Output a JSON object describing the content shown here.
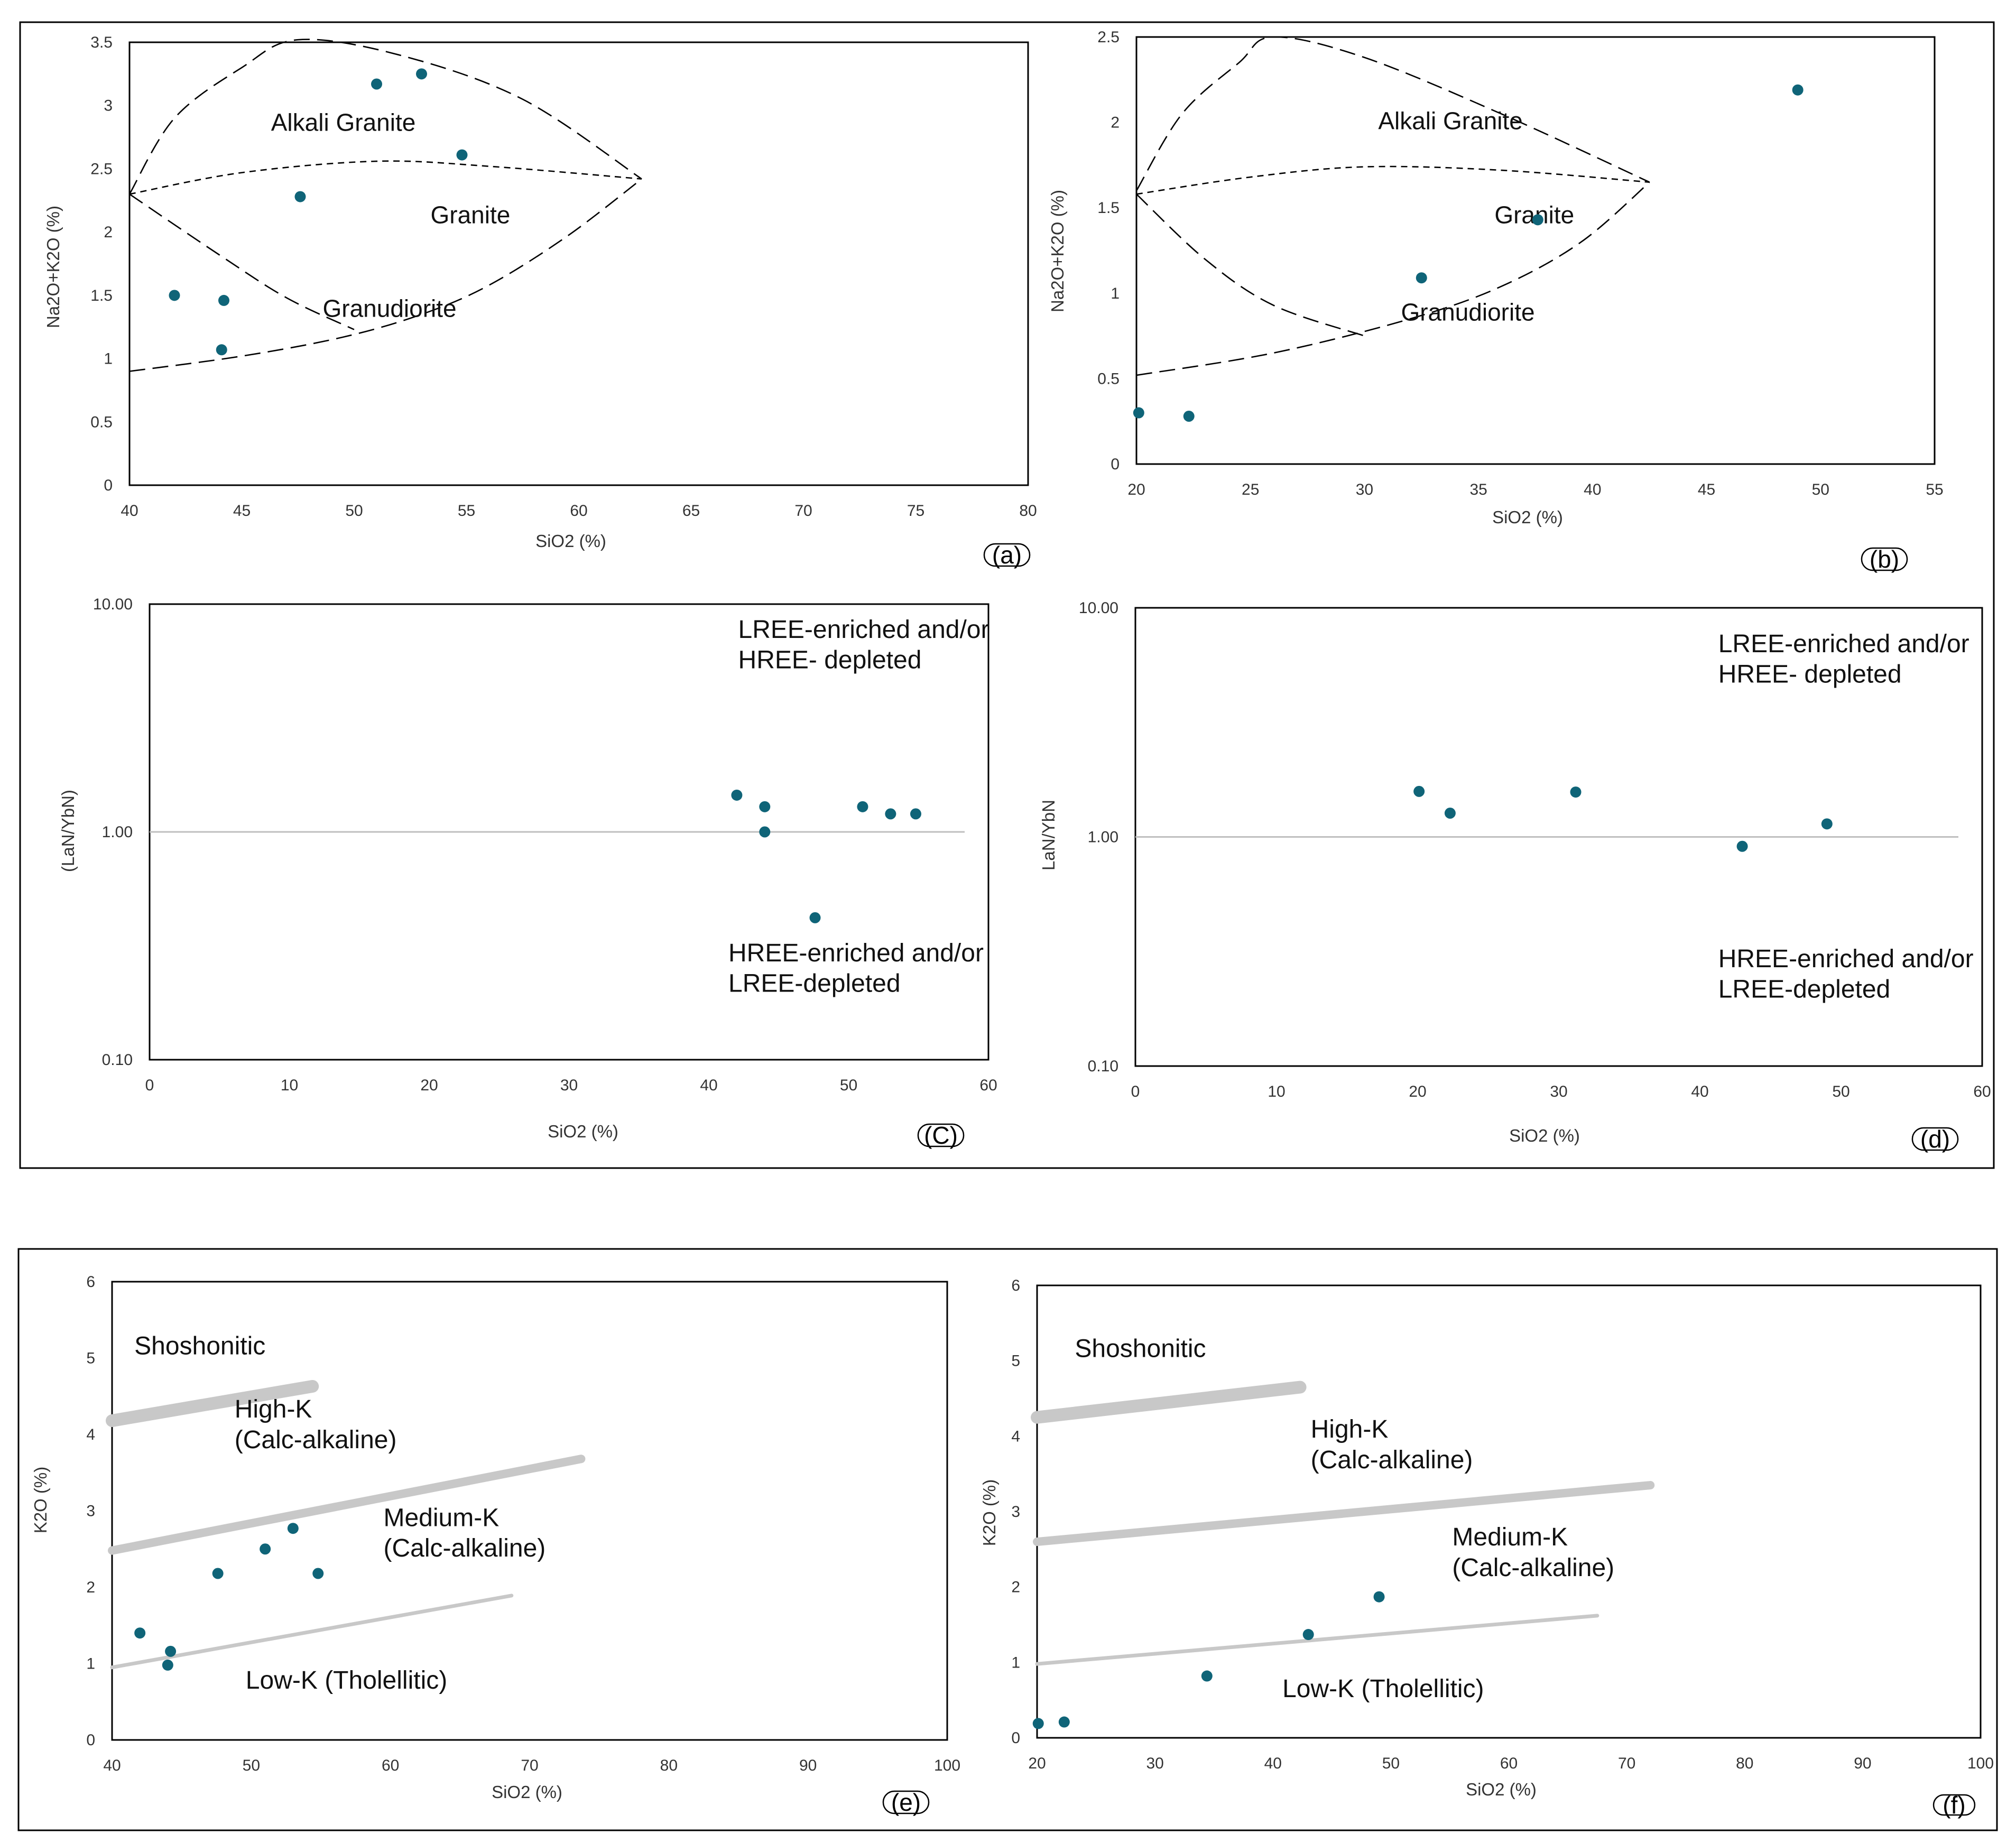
{
  "colors": {
    "marker": "#0f6478",
    "frame": "#000000",
    "dash": "#000000",
    "refline": "#bfbfbf",
    "band": "#c8c8c8"
  },
  "chart_data": [
    {
      "id": "a",
      "type": "scatter",
      "panel_label": "(a)",
      "xlabel": "SiO2 (%)",
      "ylabel": "Na2O+K2O (%)",
      "xlim": [
        40,
        80
      ],
      "ylim": [
        0,
        3.5
      ],
      "xticks": [
        40,
        45,
        50,
        55,
        60,
        65,
        70,
        75,
        80
      ],
      "yticks": [
        0,
        0.5,
        1,
        1.5,
        2,
        2.5,
        3,
        3.5
      ],
      "tick_labels_x": [
        "40",
        "45",
        "50",
        "55",
        "60",
        "65",
        "70",
        "75",
        "80"
      ],
      "tick_labels_y": [
        "0",
        "0.5",
        "1",
        "1.5",
        "2",
        "2.5",
        "3",
        "3.5"
      ],
      "points": [
        [
          42,
          1.5
        ],
        [
          44.1,
          1.07
        ],
        [
          44.2,
          1.46
        ],
        [
          47.6,
          2.28
        ],
        [
          51,
          3.17
        ],
        [
          53,
          3.25
        ],
        [
          54.8,
          2.61
        ]
      ],
      "field_labels": [
        {
          "text": "Alkali Granite",
          "x": 46.3,
          "y": 2.8
        },
        {
          "text": "Granite",
          "x": 53.4,
          "y": 2.07
        },
        {
          "text": "Granudiorite",
          "x": 48.6,
          "y": 1.33
        }
      ],
      "boundaries": [
        {
          "style": "long",
          "pts": [
            [
              40,
              2.3
            ],
            [
              42,
              2.9
            ],
            [
              45,
              3.3
            ],
            [
              47.5,
              3.52
            ],
            [
              52,
              3.4
            ],
            [
              57.5,
              3.05
            ],
            [
              62.8,
              2.42
            ]
          ]
        },
        {
          "style": "short",
          "pts": [
            [
              40,
              2.3
            ],
            [
              45,
              2.47
            ],
            [
              51,
              2.56
            ],
            [
              56,
              2.52
            ],
            [
              62.8,
              2.42
            ]
          ]
        },
        {
          "style": "long",
          "pts": [
            [
              40,
              2.3
            ],
            [
              44,
              1.82
            ],
            [
              47,
              1.48
            ],
            [
              50,
              1.23
            ]
          ]
        },
        {
          "style": "long",
          "pts": [
            [
              40,
              0.9
            ],
            [
              45,
              1.02
            ],
            [
              49.5,
              1.17
            ],
            [
              53,
              1.35
            ],
            [
              56,
              1.58
            ],
            [
              59.5,
              1.97
            ],
            [
              62.8,
              2.42
            ]
          ]
        }
      ]
    },
    {
      "id": "b",
      "type": "scatter",
      "panel_label": "(b)",
      "xlabel": "SiO2 (%)",
      "ylabel": "Na2O+K2O (%)",
      "xlim": [
        20,
        55
      ],
      "ylim": [
        0,
        2.5
      ],
      "xticks": [
        20,
        25,
        30,
        35,
        40,
        45,
        50,
        55
      ],
      "yticks": [
        0,
        0.5,
        1,
        1.5,
        2,
        2.5
      ],
      "tick_labels_x": [
        "20",
        "25",
        "30",
        "35",
        "40",
        "45",
        "50",
        "55"
      ],
      "tick_labels_y": [
        "0",
        "0.5",
        "1",
        "1.5",
        "2",
        "2.5"
      ],
      "points": [
        [
          20.1,
          0.3
        ],
        [
          22.3,
          0.28
        ],
        [
          32.5,
          1.09
        ],
        [
          37.6,
          1.43
        ],
        [
          49,
          2.19
        ]
      ],
      "field_labels": [
        {
          "text": "Alkali Granite",
          "x": 30.6,
          "y": 1.96
        },
        {
          "text": "Granite",
          "x": 35.7,
          "y": 1.41
        },
        {
          "text": "Granudiorite",
          "x": 31.6,
          "y": 0.84
        }
      ],
      "boundaries": [
        {
          "style": "long",
          "pts": [
            [
              20,
              1.6
            ],
            [
              22,
              2.05
            ],
            [
              24.5,
              2.35
            ],
            [
              26,
              2.5
            ],
            [
              30,
              2.38
            ],
            [
              36,
              2.05
            ],
            [
              42.5,
              1.65
            ]
          ]
        },
        {
          "style": "short",
          "pts": [
            [
              20,
              1.58
            ],
            [
              25,
              1.68
            ],
            [
              30,
              1.74
            ],
            [
              36,
              1.72
            ],
            [
              42.5,
              1.65
            ]
          ]
        },
        {
          "style": "long",
          "pts": [
            [
              20,
              1.58
            ],
            [
              23,
              1.2
            ],
            [
              26,
              0.93
            ],
            [
              30,
              0.75
            ]
          ]
        },
        {
          "style": "long",
          "pts": [
            [
              20,
              0.52
            ],
            [
              26,
              0.65
            ],
            [
              32,
              0.85
            ],
            [
              36,
              1.04
            ],
            [
              39.5,
              1.3
            ],
            [
              42.5,
              1.65
            ]
          ]
        }
      ]
    },
    {
      "id": "c",
      "type": "scatter",
      "panel_label": "(C)",
      "xlabel": "SiO2 (%)",
      "ylabel": "(LaN/YbN)",
      "yscale": "log",
      "xlim": [
        0,
        60
      ],
      "ylim": [
        0.1,
        10
      ],
      "xticks": [
        0,
        10,
        20,
        30,
        40,
        50,
        60
      ],
      "yticks": [
        0.1,
        1,
        10
      ],
      "tick_labels_x": [
        "0",
        "10",
        "20",
        "30",
        "40",
        "50",
        "60"
      ],
      "tick_labels_y": [
        "0.10",
        "1.00",
        "10.00"
      ],
      "reference_line": 1.0,
      "points": [
        [
          42,
          1.45
        ],
        [
          44,
          1.29
        ],
        [
          44,
          1.0
        ],
        [
          47.6,
          0.42
        ],
        [
          51,
          1.29
        ],
        [
          53,
          1.2
        ],
        [
          54.8,
          1.2
        ]
      ],
      "annotations": [
        {
          "text": [
            "LREE-enriched and/or",
            "HREE- depleted"
          ],
          "x": 42.1,
          "y": 7.1
        },
        {
          "text": [
            "HREE-enriched and/or",
            "LREE-depleted"
          ],
          "x": 41.4,
          "y": 0.27
        }
      ]
    },
    {
      "id": "d",
      "type": "scatter",
      "panel_label": "(d)",
      "xlabel": "SiO2 (%)",
      "ylabel": "LaN/YbN",
      "yscale": "log",
      "xlim": [
        0,
        60
      ],
      "ylim": [
        0.1,
        10
      ],
      "xticks": [
        0,
        10,
        20,
        30,
        40,
        50,
        60
      ],
      "yticks": [
        0.1,
        1,
        10
      ],
      "tick_labels_x": [
        "0",
        "10",
        "20",
        "30",
        "40",
        "50",
        "60"
      ],
      "tick_labels_y": [
        "0.10",
        "1.00",
        "10.00"
      ],
      "reference_line": 1.0,
      "points": [
        [
          20.1,
          1.58
        ],
        [
          22.3,
          1.27
        ],
        [
          31.2,
          1.57
        ],
        [
          43,
          0.91
        ],
        [
          49,
          1.14
        ]
      ],
      "annotations": [
        {
          "text": [
            "LREE-enriched and/or",
            "HREE- depleted"
          ],
          "x": 41.3,
          "y": 6.4
        },
        {
          "text": [
            "HREE-enriched and/or",
            "LREE-depleted"
          ],
          "x": 41.3,
          "y": 0.27
        }
      ]
    },
    {
      "id": "e",
      "type": "scatter",
      "panel_label": "(e)",
      "xlabel": "SiO2 (%)",
      "ylabel": "K2O (%)",
      "xlim": [
        40,
        100
      ],
      "ylim": [
        0,
        6
      ],
      "xticks": [
        40,
        50,
        60,
        70,
        80,
        90,
        100
      ],
      "yticks": [
        0,
        1,
        2,
        3,
        4,
        5,
        6
      ],
      "tick_labels_x": [
        "40",
        "50",
        "60",
        "70",
        "80",
        "90",
        "100"
      ],
      "tick_labels_y": [
        "0",
        "1",
        "2",
        "3",
        "4",
        "5",
        "6"
      ],
      "points": [
        [
          42,
          1.4
        ],
        [
          44,
          0.98
        ],
        [
          44.2,
          1.16
        ],
        [
          47.6,
          2.18
        ],
        [
          51,
          2.5
        ],
        [
          53,
          2.77
        ],
        [
          54.8,
          2.18
        ]
      ],
      "field_labels": [
        {
          "text": [
            "Shoshonitic"
          ],
          "x": 41.6,
          "y": 5.05
        },
        {
          "text": [
            "High-K",
            "(Calc-alkaline)"
          ],
          "x": 48.8,
          "y": 4.22
        },
        {
          "text": [
            "Medium-K",
            "(Calc-alkaline)"
          ],
          "x": 59.5,
          "y": 2.8
        },
        {
          "text": [
            "Low-K (Tholellitic)"
          ],
          "x": 49.6,
          "y": 0.67
        }
      ],
      "boundaries": [
        {
          "thick": "heavy",
          "pts": [
            [
              40,
              4.18
            ],
            [
              54.4,
              4.63
            ]
          ]
        },
        {
          "thick": "mid",
          "pts": [
            [
              40,
              2.48
            ],
            [
              73.7,
              3.68
            ]
          ]
        },
        {
          "thick": "thin",
          "pts": [
            [
              40,
              0.95
            ],
            [
              68.7,
              1.89
            ]
          ]
        }
      ]
    },
    {
      "id": "f",
      "type": "scatter",
      "panel_label": "(f)",
      "xlabel": "SiO2 (%)",
      "ylabel": "K2O (%)",
      "xlim": [
        20,
        100
      ],
      "ylim": [
        0,
        6
      ],
      "xticks": [
        20,
        30,
        40,
        50,
        60,
        70,
        80,
        90,
        100
      ],
      "yticks": [
        0,
        1,
        2,
        3,
        4,
        5,
        6
      ],
      "tick_labels_x": [
        "20",
        "30",
        "40",
        "50",
        "60",
        "70",
        "80",
        "90",
        "100"
      ],
      "tick_labels_y": [
        "0",
        "1",
        "2",
        "3",
        "4",
        "5",
        "6"
      ],
      "points": [
        [
          20.1,
          0.19
        ],
        [
          22.3,
          0.21
        ],
        [
          34.4,
          0.82
        ],
        [
          43,
          1.37
        ],
        [
          49,
          1.87
        ]
      ],
      "field_labels": [
        {
          "text": [
            "Shoshonitic"
          ],
          "x": 23.2,
          "y": 5.05
        },
        {
          "text": [
            "High-K",
            "(Calc-alkaline)"
          ],
          "x": 43.2,
          "y": 3.98
        },
        {
          "text": [
            "Medium-K",
            "(Calc-alkaline)"
          ],
          "x": 55.2,
          "y": 2.55
        },
        {
          "text": [
            "Low-K (Tholellitic)"
          ],
          "x": 40.8,
          "y": 0.54
        }
      ],
      "boundaries": [
        {
          "thick": "heavy",
          "pts": [
            [
              20,
              4.25
            ],
            [
              42.3,
              4.65
            ]
          ]
        },
        {
          "thick": "mid",
          "pts": [
            [
              20,
              2.6
            ],
            [
              72,
              3.35
            ]
          ]
        },
        {
          "thick": "thin",
          "pts": [
            [
              20,
              0.98
            ],
            [
              67.5,
              1.62
            ]
          ]
        }
      ]
    }
  ]
}
